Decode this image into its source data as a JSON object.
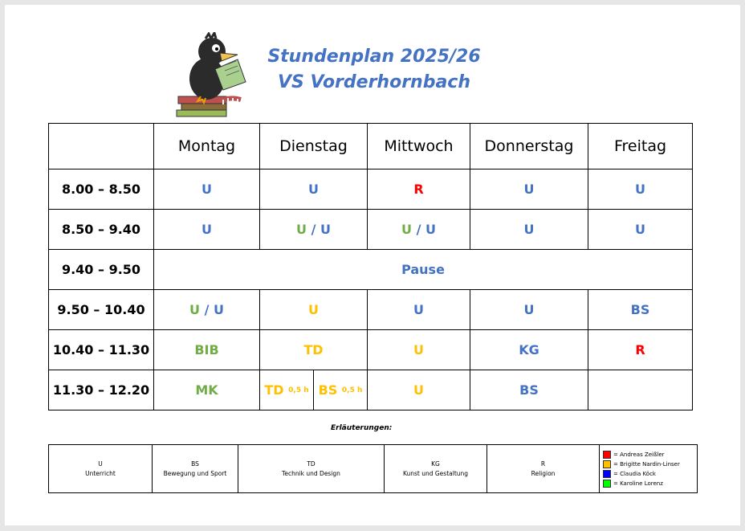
{
  "title": {
    "line1": "Stundenplan 2025/26",
    "line2": "VS Vorderhornbach"
  },
  "colors": {
    "blue": "#4472c4",
    "green": "#70ad47",
    "red": "#ff0000",
    "orange": "#ffc000"
  },
  "days": [
    "Montag",
    "Dienstag",
    "Mittwoch",
    "Donnerstag",
    "Freitag"
  ],
  "rows": [
    {
      "time": "8.00 – 8.50",
      "mo": "U",
      "di": "U",
      "mi": "R",
      "do": "U",
      "fr": "U"
    },
    {
      "time": "8.50 – 9.40",
      "mo": "U",
      "di_a": "U",
      "di_sep": " / ",
      "di_b": "U",
      "mi_a": "U",
      "mi_sep": " / ",
      "mi_b": "U",
      "do": "U",
      "fr": "U"
    },
    {
      "time": "9.40 – 9.50",
      "pause": "Pause"
    },
    {
      "time": "9.50 – 10.40",
      "mo_a": "U",
      "mo_sep": " / ",
      "mo_b": "U",
      "di": "U",
      "mi": "U",
      "do": "U",
      "fr": "BS"
    },
    {
      "time": "10.40 – 11.30",
      "mo": "BIB",
      "di": "TD",
      "mi": "U",
      "do": "KG",
      "fr": "R"
    },
    {
      "time": "11.30 – 12.20",
      "mo": "MK",
      "di_a": "TD",
      "di_a_note": "0,5 h",
      "di_b": "BS",
      "di_b_note": "0,5 h",
      "mi": "U",
      "do": "BS",
      "fr": ""
    }
  ],
  "legend": {
    "title": "Erläuterungen:",
    "items": [
      {
        "abbr": "U",
        "full": "Unterricht"
      },
      {
        "abbr": "BS",
        "full": "Bewegung und Sport"
      },
      {
        "abbr": "TD",
        "full": "Technik und Design"
      },
      {
        "abbr": "KG",
        "full": "Kunst und Gestaltung"
      },
      {
        "abbr": "R",
        "full": "Religion"
      }
    ],
    "persons": [
      {
        "color": "#ff0000",
        "label": "= Andreas Zeißler"
      },
      {
        "color": "#ffc000",
        "label": "= Brigitte Nardin-Linser"
      },
      {
        "color": "#0000ff",
        "label": "= Claudia Köck"
      },
      {
        "color": "#00ff00",
        "label": "= Karoline Lorenz"
      }
    ]
  }
}
